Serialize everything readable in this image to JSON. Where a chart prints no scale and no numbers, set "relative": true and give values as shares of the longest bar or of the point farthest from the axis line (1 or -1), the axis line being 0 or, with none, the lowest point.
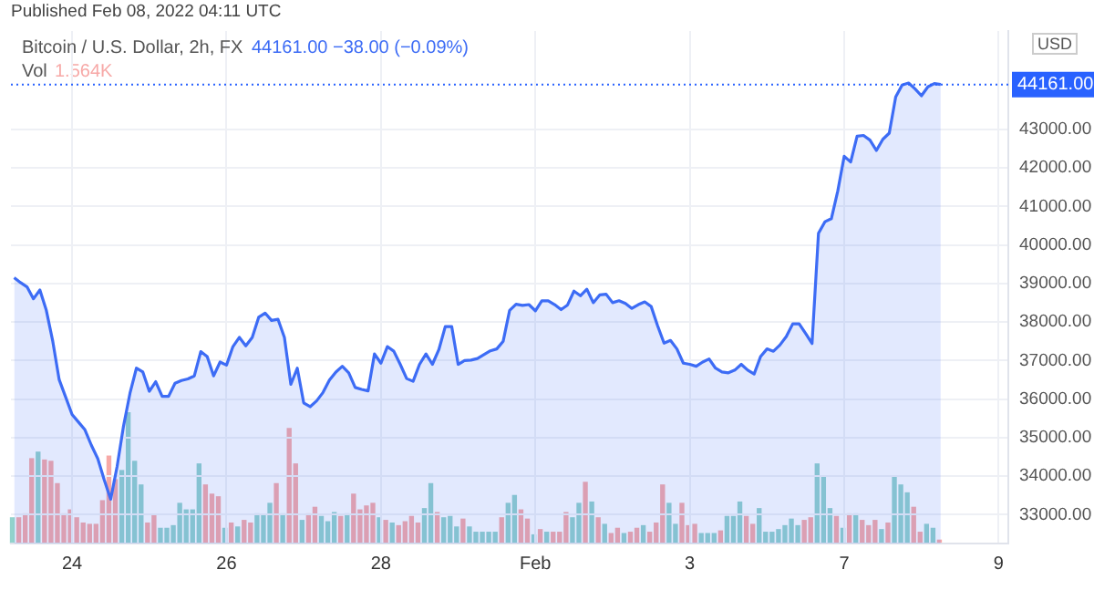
{
  "chart_data": [
    {
      "type": "area",
      "title": "Bitcoin / U.S. Dollar, 2h, FX",
      "subtitle": "44161.00  −38.00 (−0.09%)",
      "ylabel": "USD",
      "annotations": [
        "Published Feb 08, 2022 04:11 UTC"
      ],
      "color": "#3d6cf5",
      "categories": [
        null,
        null,
        null,
        null,
        null,
        null,
        null,
        null,
        null,
        "24",
        null,
        null,
        null,
        null,
        null,
        null,
        null,
        null,
        null,
        null,
        null,
        null,
        null,
        null,
        null,
        null,
        null,
        null,
        null,
        null,
        null,
        null,
        null,
        "26",
        null,
        null,
        null,
        null,
        null,
        null,
        null,
        null,
        null,
        null,
        null,
        null,
        null,
        null,
        null,
        null,
        null,
        null,
        null,
        null,
        null,
        null,
        null,
        "28",
        null,
        null,
        null,
        null,
        null,
        null,
        null,
        null,
        null,
        null,
        null,
        null,
        null,
        null,
        null,
        null,
        null,
        null,
        null,
        null,
        null,
        null,
        null,
        "Feb",
        null,
        null,
        null,
        null,
        null,
        null,
        null,
        null,
        null,
        null,
        null,
        null,
        null,
        null,
        null,
        null,
        null,
        null,
        null,
        null,
        null,
        null,
        null,
        "3",
        null,
        null,
        null,
        null,
        null,
        null,
        null,
        null,
        null,
        null,
        null,
        null,
        null,
        null,
        null,
        null,
        null,
        null,
        null,
        null,
        null,
        null,
        null,
        "7",
        null,
        null,
        null,
        null,
        null,
        null,
        null,
        null,
        null,
        null,
        null,
        null,
        null,
        null,
        null,
        null,
        null,
        null,
        null,
        null,
        null,
        null,
        null,
        "9",
        null
      ],
      "values": [
        39150,
        39020,
        38910,
        38600,
        38830,
        38300,
        37500,
        36500,
        36050,
        35600,
        35400,
        35200,
        34800,
        34450,
        33900,
        33400,
        34250,
        35300,
        36150,
        36800,
        36700,
        36200,
        36450,
        36070,
        36070,
        36410,
        36480,
        36520,
        36600,
        37230,
        37100,
        36600,
        36960,
        36880,
        37360,
        37600,
        37380,
        37600,
        38120,
        38230,
        38040,
        38070,
        37600,
        36380,
        36800,
        35900,
        35800,
        35950,
        36170,
        36490,
        36700,
        36850,
        36680,
        36300,
        36250,
        36210,
        37170,
        36930,
        37360,
        37240,
        36900,
        36530,
        36460,
        36900,
        37170,
        36900,
        37280,
        37880,
        37880,
        36900,
        37000,
        37010,
        37050,
        37150,
        37250,
        37300,
        37500,
        38300,
        38460,
        38430,
        38450,
        38290,
        38550,
        38550,
        38450,
        38320,
        38440,
        38800,
        38680,
        38850,
        38500,
        38700,
        38720,
        38500,
        38550,
        38480,
        38350,
        38450,
        38520,
        38400,
        37900,
        37450,
        37520,
        37300,
        36930,
        36900,
        36850,
        36960,
        37040,
        36800,
        36700,
        36680,
        36750,
        36900,
        36750,
        36650,
        37100,
        37300,
        37240,
        37400,
        37620,
        37950,
        37950,
        37700,
        37440,
        40300,
        40600,
        40680,
        41400,
        42300,
        42150,
        42820,
        42840,
        42720,
        42450,
        42740,
        42900,
        43840,
        44150,
        44200,
        44050,
        43870,
        44100,
        44185,
        44161,
        null,
        null,
        null,
        null,
        null,
        null,
        null,
        null,
        null,
        null
      ],
      "ylim": [
        32250,
        45550
      ],
      "yticks": [
        {
          "value": 33000,
          "label": "33000.00"
        },
        {
          "value": 34000,
          "label": "34000.00"
        },
        {
          "value": 35000,
          "label": "35000.00"
        },
        {
          "value": 36000,
          "label": "36000.00"
        },
        {
          "value": 37000,
          "label": "37000.00"
        },
        {
          "value": 38000,
          "label": "38000.00"
        },
        {
          "value": 39000,
          "label": "39000.00"
        },
        {
          "value": 40000,
          "label": "40000.00"
        },
        {
          "value": 41000,
          "label": "41000.00"
        },
        {
          "value": 42000,
          "label": "42000.00"
        },
        {
          "value": 43000,
          "label": "43000.00"
        }
      ],
      "ref_lines": [
        {
          "axis": "y",
          "value": 44161,
          "label": "44161.00",
          "color": "#2962ff",
          "line_style": "dotted"
        }
      ],
      "grid": true
    },
    {
      "type": "bar",
      "relative": true,
      "annotations": [
        "Vol 1.564K"
      ],
      "categories": [
        null,
        null,
        null,
        null,
        null,
        null,
        null,
        null,
        null,
        null,
        null,
        null,
        null,
        null,
        null,
        null,
        null,
        null,
        null,
        null,
        null,
        null,
        null,
        null,
        null,
        null,
        null,
        null,
        null,
        null,
        null,
        null,
        null,
        null,
        null,
        null,
        null,
        null,
        null,
        null,
        null,
        null,
        null,
        null,
        null,
        null,
        null,
        null,
        null,
        null,
        null,
        null,
        null,
        null,
        null,
        null,
        null,
        null,
        null,
        null,
        null,
        null,
        null,
        null,
        null,
        null,
        null,
        null,
        null,
        null,
        null,
        null,
        null,
        null,
        null,
        null,
        null,
        null,
        null,
        null,
        null,
        null,
        null,
        null,
        null,
        null,
        null,
        null,
        null,
        null,
        null,
        null,
        null,
        null,
        null,
        null,
        null,
        null,
        null,
        null,
        null,
        null,
        null,
        null,
        null,
        null,
        null,
        null,
        null,
        null,
        null,
        null,
        null,
        null,
        null,
        null,
        null,
        null,
        null,
        null,
        null,
        null,
        null,
        null,
        null,
        null,
        null,
        null,
        null,
        null,
        null,
        null,
        null,
        null,
        null,
        null,
        null,
        null,
        null,
        null,
        null,
        null,
        null,
        null,
        null
      ],
      "values": [
        0.2,
        0.2,
        0.23,
        0.65,
        0.7,
        0.64,
        0.63,
        0.46,
        0.23,
        0.26,
        0.2,
        0.16,
        0.15,
        0.15,
        0.33,
        0.67,
        0.49,
        0.56,
        1,
        0.63,
        0.45,
        0.16,
        0.22,
        0.12,
        0.12,
        0.14,
        0.31,
        0.26,
        0.26,
        0.61,
        0.45,
        0.38,
        0.36,
        0.12,
        0.16,
        0.13,
        0.18,
        0.16,
        0.23,
        0.22,
        0.31,
        0.46,
        0.23,
        0.88,
        0.61,
        0.18,
        0.23,
        0.28,
        0.21,
        0.17,
        0.24,
        0.21,
        0.23,
        0.38,
        0.26,
        0.29,
        0.31,
        0.2,
        0.18,
        0.16,
        0.14,
        0.17,
        0.21,
        0.16,
        0.27,
        0.46,
        0.24,
        0.2,
        0.21,
        0.13,
        0.19,
        0.13,
        0.09,
        0.09,
        0.09,
        0.09,
        0.2,
        0.31,
        0.37,
        0.26,
        0.19,
        0.07,
        0.11,
        0.09,
        0.09,
        0.09,
        0.24,
        0.2,
        0.31,
        0.47,
        0.32,
        0.2,
        0.15,
        0.08,
        0.12,
        0.08,
        0.09,
        0.12,
        0.14,
        0.09,
        0.16,
        0.45,
        0.31,
        0.15,
        0.31,
        0.14,
        0.15,
        0.08,
        0.08,
        0.08,
        0.1,
        0.21,
        0.21,
        0.32,
        0.21,
        0.15,
        0.27,
        0.09,
        0.09,
        0.11,
        0.14,
        0.19,
        0.14,
        0.18,
        0.2,
        0.61,
        0.52,
        0.27,
        0.21,
        0.12,
        0.23,
        0.23,
        0.18,
        0.14,
        0.18,
        0.11,
        0.16,
        0.52,
        0.45,
        0.39,
        0.28,
        0.09,
        0.15,
        0.12,
        0.03
      ],
      "colors": [
        "#92d2cc",
        "#f7a9a7",
        "#f7a9a7",
        "#f7a9a7",
        "#92d2cc",
        "#f7a9a7",
        "#f7a9a7",
        "#f7a9a7",
        "#f7a9a7",
        "#f7a9a7",
        "#f7a9a7",
        "#f7a9a7",
        "#f7a9a7",
        "#f7a9a7",
        "#f7a9a7",
        "#f7a9a7",
        "#f7a9a7",
        "#92d2cc",
        "#92d2cc",
        "#92d2cc",
        "#92d2cc",
        "#f7a9a7",
        "#f7a9a7",
        "#92d2cc",
        "#92d2cc",
        "#92d2cc",
        "#92d2cc",
        "#92d2cc",
        "#92d2cc",
        "#92d2cc",
        "#f7a9a7",
        "#f7a9a7",
        "#f7a9a7",
        "#92d2cc",
        "#f7a9a7",
        "#92d2cc",
        "#f7a9a7",
        "#f7a9a7",
        "#92d2cc",
        "#92d2cc",
        "#92d2cc",
        "#f7a9a7",
        "#92d2cc",
        "#f7a9a7",
        "#f7a9a7",
        "#92d2cc",
        "#f7a9a7",
        "#f7a9a7",
        "#92d2cc",
        "#92d2cc",
        "#92d2cc",
        "#f7a9a7",
        "#92d2cc",
        "#f7a9a7",
        "#f7a9a7",
        "#f7a9a7",
        "#f7a9a7",
        "#92d2cc",
        "#f7a9a7",
        "#92d2cc",
        "#f7a9a7",
        "#f7a9a7",
        "#f7a9a7",
        "#f7a9a7",
        "#92d2cc",
        "#92d2cc",
        "#f7a9a7",
        "#92d2cc",
        "#92d2cc",
        "#92d2cc",
        "#f7a9a7",
        "#92d2cc",
        "#92d2cc",
        "#92d2cc",
        "#92d2cc",
        "#92d2cc",
        "#f7a9a7",
        "#92d2cc",
        "#92d2cc",
        "#f7a9a7",
        "#f7a9a7",
        "#92d2cc",
        "#f7a9a7",
        "#92d2cc",
        "#f7a9a7",
        "#f7a9a7",
        "#f7a9a7",
        "#92d2cc",
        "#92d2cc",
        "#f7a9a7",
        "#92d2cc",
        "#f7a9a7",
        "#92d2cc",
        "#f7a9a7",
        "#f7a9a7",
        "#92d2cc",
        "#f7a9a7",
        "#f7a9a7",
        "#92d2cc",
        "#f7a9a7",
        "#f7a9a7",
        "#f7a9a7",
        "#92d2cc",
        "#92d2cc",
        "#f7a9a7",
        "#f7a9a7",
        "#f7a9a7",
        "#92d2cc",
        "#92d2cc",
        "#92d2cc",
        "#f7a9a7",
        "#92d2cc",
        "#92d2cc",
        "#92d2cc",
        "#f7a9a7",
        "#f7a9a7",
        "#92d2cc",
        "#92d2cc",
        "#92d2cc",
        "#92d2cc",
        "#92d2cc",
        "#92d2cc",
        "#92d2cc",
        "#f7a9a7",
        "#f7a9a7",
        "#92d2cc",
        "#92d2cc",
        "#92d2cc",
        "#f7a9a7",
        "#92d2cc",
        "#f7a9a7",
        "#92d2cc",
        "#f7a9a7",
        "#f7a9a7",
        "#f7a9a7",
        "#92d2cc",
        "#f7a9a7",
        "#92d2cc",
        "#92d2cc",
        "#92d2cc",
        "#f7a9a7",
        "#f7a9a7",
        "#92d2cc",
        "#92d2cc",
        "#f7a9a7"
      ]
    }
  ]
}
